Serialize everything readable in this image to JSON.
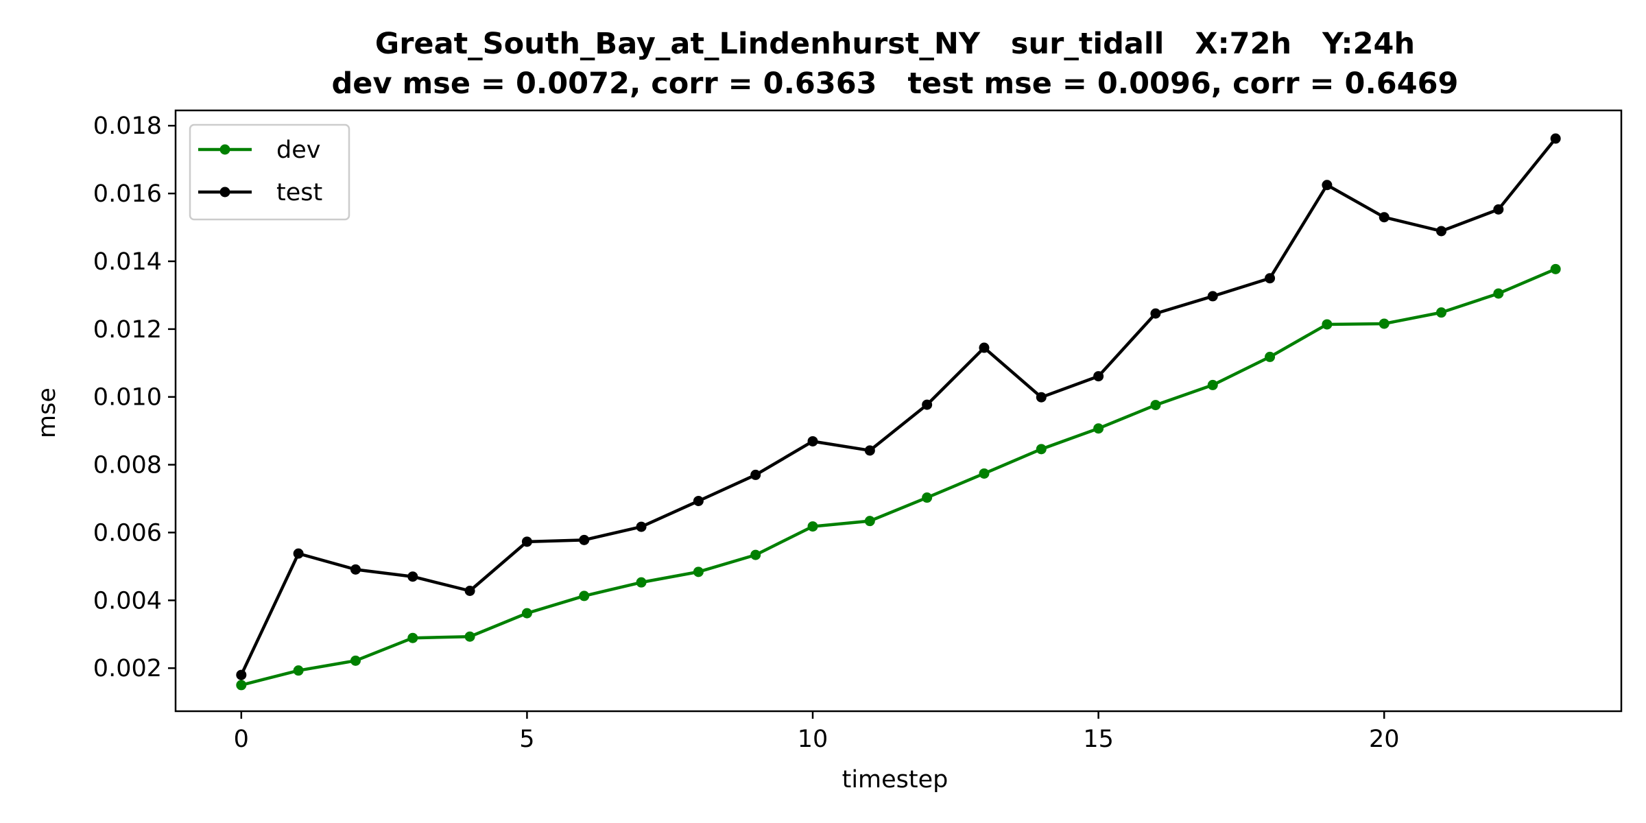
{
  "chart_data": {
    "type": "line",
    "title": "Great_South_Bay_at_Lindenhurst_NY   sur_tidall   X:72h   Y:24h",
    "subtitle": "dev mse = 0.0072, corr = 0.6363   test mse = 0.0096, corr = 0.6469",
    "xlabel": "timestep",
    "ylabel": "mse",
    "xlim": [
      -1.15,
      24.15
    ],
    "ylim": [
      0.00073,
      0.01845
    ],
    "x_ticks": [
      0,
      5,
      10,
      15,
      20
    ],
    "x_tick_labels": [
      "0",
      "5",
      "10",
      "15",
      "20"
    ],
    "y_ticks": [
      0.002,
      0.004,
      0.006,
      0.008,
      0.01,
      0.012,
      0.014,
      0.016,
      0.018
    ],
    "y_tick_labels": [
      "0.002",
      "0.004",
      "0.006",
      "0.008",
      "0.010",
      "0.012",
      "0.014",
      "0.016",
      "0.018"
    ],
    "grid": false,
    "legend_position": "top-left",
    "x": [
      0,
      1,
      2,
      3,
      4,
      5,
      6,
      7,
      8,
      9,
      10,
      11,
      12,
      13,
      14,
      15,
      16,
      17,
      18,
      19,
      20,
      21,
      22,
      23
    ],
    "series": [
      {
        "name": "dev",
        "color": "#008000",
        "marker": "circle",
        "values": [
          0.0015,
          0.00193,
          0.00222,
          0.00289,
          0.00293,
          0.00362,
          0.00413,
          0.00453,
          0.00484,
          0.00534,
          0.00618,
          0.00634,
          0.00703,
          0.00774,
          0.00846,
          0.00907,
          0.00976,
          0.01035,
          0.01118,
          0.01214,
          0.01216,
          0.01249,
          0.01305,
          0.01377
        ]
      },
      {
        "name": "test",
        "color": "#000000",
        "marker": "circle",
        "values": [
          0.0018,
          0.00538,
          0.00491,
          0.0047,
          0.00428,
          0.00573,
          0.00578,
          0.00617,
          0.00693,
          0.0077,
          0.00869,
          0.00842,
          0.00977,
          0.01145,
          0.00999,
          0.01061,
          0.01246,
          0.01297,
          0.0135,
          0.01625,
          0.0153,
          0.01489,
          0.01553,
          0.01762
        ]
      }
    ]
  }
}
